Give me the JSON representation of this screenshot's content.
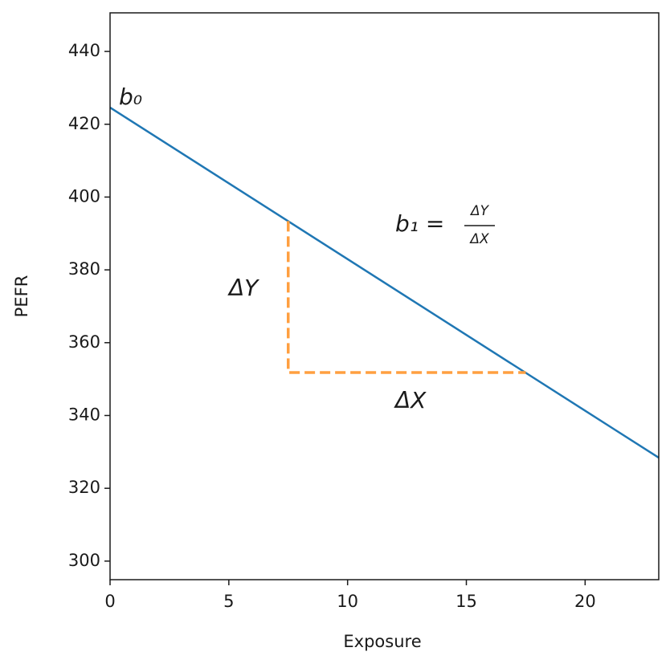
{
  "chart_data": {
    "type": "line",
    "xlabel": "Exposure",
    "ylabel": "PEFR",
    "xlim": [
      0,
      23.1
    ],
    "ylim": [
      294.9,
      450.6
    ],
    "xticks": [
      0,
      5,
      10,
      15,
      20
    ],
    "yticks": [
      300,
      320,
      340,
      360,
      380,
      400,
      420,
      440
    ],
    "grid": false,
    "series": [
      {
        "color": "#1f77b4",
        "dashed": false,
        "x": [
          0,
          23.1
        ],
        "values": [
          424.6,
          328.4
        ]
      },
      {
        "color": "#ff9f40",
        "dashed": true,
        "x": [
          7.5,
          7.5,
          17.5
        ],
        "values": [
          393.4,
          351.8,
          351.8
        ]
      }
    ],
    "annotations": {
      "intercept": "b₀",
      "slope_lhs": "b₁ =",
      "slope_numerator": "ΔY",
      "slope_denominator": "ΔX",
      "delta_y": "ΔY",
      "delta_x": "ΔX"
    }
  }
}
